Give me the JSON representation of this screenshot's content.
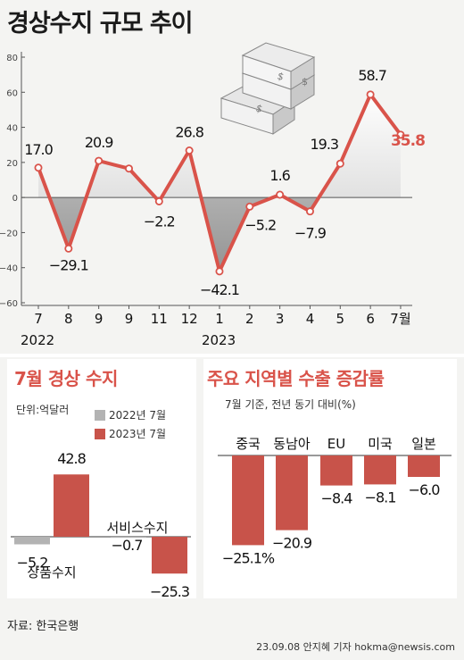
{
  "title": "경상수지 규모 추이",
  "colors": {
    "accent": "#d9534a",
    "gray": "#b3b3b3",
    "text": "#1a1a1a"
  },
  "chart_data": [
    {
      "type": "line",
      "title": "경상수지 규모 추이",
      "x": [
        "7",
        "8",
        "9",
        "9",
        "11",
        "12",
        "1",
        "2",
        "3",
        "4",
        "5",
        "6",
        "7월"
      ],
      "year_labels": [
        {
          "label": "2022",
          "at_index": 0
        },
        {
          "label": "2023",
          "at_index": 6
        }
      ],
      "values": [
        17.0,
        -29.1,
        20.9,
        16.5,
        -2.2,
        26.8,
        -42.1,
        -5.2,
        1.6,
        -7.9,
        19.3,
        58.7,
        35.8
      ],
      "value_labels": [
        "17.0",
        "−29.1",
        "20.9",
        "",
        "−2.2",
        "26.8",
        "−42.1",
        "−5.2",
        "1.6",
        "−7.9",
        "19.3",
        "58.7",
        "35.8"
      ],
      "y_ticks": [
        "80",
        "60",
        "40",
        "20",
        "0",
        "−20",
        "−40",
        "−60"
      ],
      "ylim": [
        -60,
        80
      ],
      "grid": false
    },
    {
      "type": "bar",
      "title": "7월 경상 수지",
      "unit": "단위:억달러",
      "categories": [
        "상품수지",
        "서비스수지"
      ],
      "series": [
        {
          "name": "2022년 7월",
          "values": [
            -5.2,
            -0.7
          ],
          "labels": [
            "−5.2",
            "−0.7"
          ],
          "color": "#b3b3b3"
        },
        {
          "name": "2023년 7월",
          "values": [
            42.8,
            -25.3
          ],
          "labels": [
            "42.8",
            "−25.3"
          ],
          "color": "#c8534a"
        }
      ]
    },
    {
      "type": "bar",
      "title": "주요 지역별 수출 증감률",
      "subtitle": "7월 기준, 전년 동기 대비(%)",
      "categories": [
        "중국",
        "동남아",
        "EU",
        "미국",
        "일본"
      ],
      "values": [
        -25.1,
        -20.9,
        -8.4,
        -8.1,
        -6.0
      ],
      "labels": [
        "−25.1%",
        "−20.9",
        "−8.4",
        "−8.1",
        "−6.0"
      ]
    }
  ],
  "source": "자료: 한국은행",
  "credit": "23.09.08 안지혜 기자 hokma@newsis.com"
}
